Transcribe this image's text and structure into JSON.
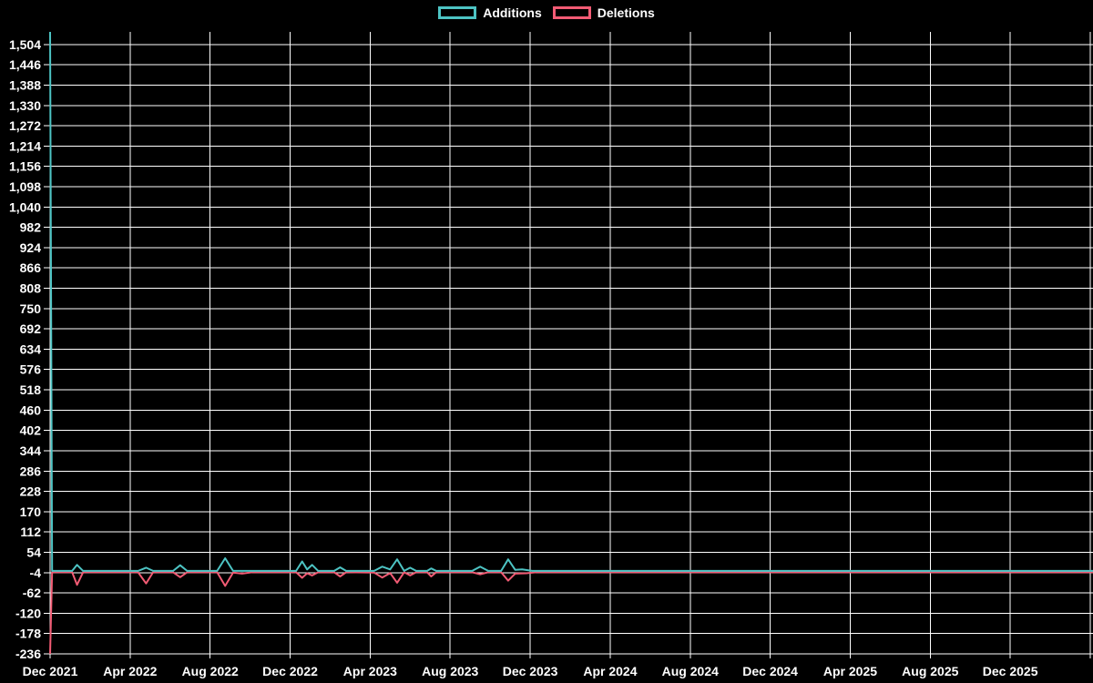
{
  "page": {
    "background": "#000000",
    "text_color": "#ffffff",
    "grid_color": "#ffffff"
  },
  "legend": {
    "items": [
      {
        "label": "Additions",
        "color": "#4dc4c4"
      },
      {
        "label": "Deletions",
        "color": "#f25b74"
      }
    ]
  },
  "chart_data": {
    "type": "line",
    "title": "",
    "xlabel": "",
    "ylabel": "",
    "grid": true,
    "legend_position": "top-center",
    "x_axis": {
      "unit": "months since Dec 2021",
      "domain_months": [
        0,
        52.15
      ],
      "gridline_every_months": 4,
      "gridline_count": 14,
      "tick_labels": [
        "Dec 2021",
        "Apr 2022",
        "Aug 2022",
        "Dec 2022",
        "Apr 2023",
        "Aug 2023",
        "Dec 2023",
        "Apr 2024",
        "Aug 2024",
        "Dec 2024",
        "Apr 2025",
        "Aug 2025",
        "Dec 2025"
      ]
    },
    "y_axis": {
      "min": -236,
      "max": 1540,
      "tick_step": 58,
      "ticks": [
        -236,
        -178,
        -120,
        -62,
        -4,
        54,
        112,
        170,
        228,
        286,
        344,
        402,
        460,
        518,
        576,
        634,
        692,
        750,
        808,
        866,
        924,
        982,
        1040,
        1098,
        1156,
        1214,
        1272,
        1330,
        1388,
        1446,
        1504
      ]
    },
    "series": [
      {
        "name": "Additions",
        "color": "#4dc4c4",
        "points": [
          [
            0,
            1540
          ],
          [
            0.1,
            1
          ],
          [
            1.1,
            1
          ],
          [
            1.35,
            18
          ],
          [
            1.65,
            1
          ],
          [
            4.4,
            1
          ],
          [
            4.8,
            10
          ],
          [
            5.15,
            1
          ],
          [
            6.15,
            1
          ],
          [
            6.5,
            17
          ],
          [
            6.85,
            1
          ],
          [
            8.35,
            1
          ],
          [
            8.75,
            37
          ],
          [
            9.15,
            1
          ],
          [
            12.3,
            1
          ],
          [
            12.6,
            28
          ],
          [
            12.85,
            5
          ],
          [
            13.1,
            18
          ],
          [
            13.4,
            1
          ],
          [
            14.2,
            1
          ],
          [
            14.5,
            11
          ],
          [
            14.8,
            1
          ],
          [
            16.2,
            1
          ],
          [
            16.6,
            13
          ],
          [
            17.0,
            5
          ],
          [
            17.35,
            34
          ],
          [
            17.7,
            1
          ],
          [
            18.0,
            10
          ],
          [
            18.3,
            1
          ],
          [
            18.85,
            1
          ],
          [
            19.05,
            8
          ],
          [
            19.3,
            1
          ],
          [
            21.1,
            1
          ],
          [
            21.5,
            13
          ],
          [
            21.9,
            1
          ],
          [
            22.55,
            1
          ],
          [
            22.9,
            34
          ],
          [
            23.25,
            4
          ],
          [
            23.6,
            5
          ],
          [
            24.1,
            1
          ],
          [
            52.15,
            1
          ]
        ]
      },
      {
        "name": "Deletions",
        "color": "#f25b74",
        "points": [
          [
            0,
            -236
          ],
          [
            0.1,
            -3
          ],
          [
            1.1,
            -3
          ],
          [
            1.35,
            -39
          ],
          [
            1.65,
            -3
          ],
          [
            4.4,
            -3
          ],
          [
            4.8,
            -35
          ],
          [
            5.15,
            -3
          ],
          [
            6.15,
            -3
          ],
          [
            6.5,
            -17
          ],
          [
            6.85,
            -3
          ],
          [
            8.35,
            -3
          ],
          [
            8.75,
            -42
          ],
          [
            9.15,
            -4
          ],
          [
            9.6,
            -7
          ],
          [
            10.1,
            -3
          ],
          [
            12.3,
            -3
          ],
          [
            12.6,
            -19
          ],
          [
            12.85,
            -6
          ],
          [
            13.1,
            -12
          ],
          [
            13.4,
            -3
          ],
          [
            14.2,
            -3
          ],
          [
            14.5,
            -15
          ],
          [
            14.8,
            -3
          ],
          [
            16.2,
            -4
          ],
          [
            16.6,
            -18
          ],
          [
            17.0,
            -5
          ],
          [
            17.35,
            -33
          ],
          [
            17.7,
            -3
          ],
          [
            18.0,
            -12
          ],
          [
            18.3,
            -3
          ],
          [
            18.85,
            -3
          ],
          [
            19.05,
            -15
          ],
          [
            19.3,
            -3
          ],
          [
            21.1,
            -3
          ],
          [
            21.5,
            -9
          ],
          [
            21.9,
            -3
          ],
          [
            22.55,
            -3
          ],
          [
            22.9,
            -27
          ],
          [
            23.25,
            -7
          ],
          [
            23.8,
            -6
          ],
          [
            24.3,
            -3
          ],
          [
            52.15,
            -3
          ]
        ]
      }
    ]
  }
}
